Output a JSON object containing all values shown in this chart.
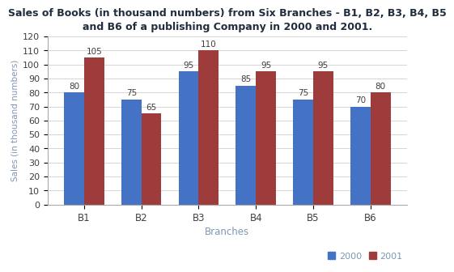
{
  "title_line1": "Sales of Books (in thousand numbers) from Six Branches - B1, B2, B3, B4, B5",
  "title_line2": "and B6 of a publishing Company in 2000 and 2001.",
  "xlabel": "Branches",
  "ylabel": "Sales (in thousand numbers)",
  "branches": [
    "B1",
    "B2",
    "B3",
    "B4",
    "B5",
    "B6"
  ],
  "values_2000": [
    80,
    75,
    95,
    85,
    75,
    70
  ],
  "values_2001": [
    105,
    65,
    110,
    95,
    95,
    80
  ],
  "color_2000": "#4472C4",
  "color_2001": "#9E3B3B",
  "ylim": [
    0,
    120
  ],
  "yticks": [
    0,
    10,
    20,
    30,
    40,
    50,
    60,
    70,
    80,
    90,
    100,
    110,
    120
  ],
  "bar_width": 0.35,
  "legend_labels": [
    "2000",
    "2001"
  ],
  "title_color": "#1F2D3D",
  "axis_label_color": "#7F96B2",
  "tick_label_color": "#404040",
  "annotation_fontsize": 7.5,
  "title_fontsize": 9.0,
  "xlabel_fontsize": 8.5,
  "ylabel_fontsize": 7.5,
  "legend_fontsize": 8.0
}
